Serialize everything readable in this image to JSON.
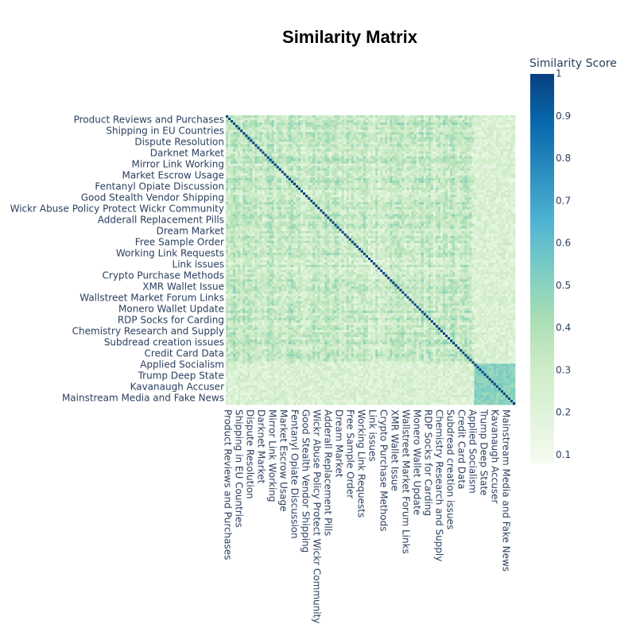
{
  "chart_data": {
    "type": "heatmap",
    "title": "Similarity Matrix",
    "n": 120,
    "labeled_rows": [
      {
        "index": 0,
        "label": "Product Reviews and Purchases"
      },
      {
        "index": 5,
        "label": "Shipping in EU Countries"
      },
      {
        "index": 10,
        "label": "Dispute Resolution"
      },
      {
        "index": 15,
        "label": "Darknet Market"
      },
      {
        "index": 20,
        "label": "Mirror Link Working"
      },
      {
        "index": 25,
        "label": "Market Escrow Usage"
      },
      {
        "index": 30,
        "label": "Fentanyl Opiate Discussion"
      },
      {
        "index": 35,
        "label": "Good Stealth Vendor Shipping"
      },
      {
        "index": 40,
        "label": "Wickr Abuse Policy Protect Wickr Community"
      },
      {
        "index": 45,
        "label": "Adderall Replacement Pills"
      },
      {
        "index": 50,
        "label": "Dream Market"
      },
      {
        "index": 55,
        "label": "Free Sample Order"
      },
      {
        "index": 60,
        "label": "Working Link Requests"
      },
      {
        "index": 65,
        "label": "Link issues"
      },
      {
        "index": 70,
        "label": "Crypto Purchase Methods"
      },
      {
        "index": 75,
        "label": "XMR Wallet Issue"
      },
      {
        "index": 80,
        "label": "Wallstreet Market Forum Links"
      },
      {
        "index": 85,
        "label": "Monero Wallet Update"
      },
      {
        "index": 90,
        "label": "RDP Socks for Carding"
      },
      {
        "index": 95,
        "label": "Chemistry Research and Supply"
      },
      {
        "index": 100,
        "label": "Subdread creation issues"
      },
      {
        "index": 105,
        "label": "Credit Card Data"
      },
      {
        "index": 110,
        "label": "Applied Socialism"
      },
      {
        "index": 115,
        "label": "Trump Deep State"
      },
      {
        "index": 120,
        "label": "Kavanaugh Accuser"
      },
      {
        "index": 125,
        "label": "Mainstream Media and Fake News"
      }
    ],
    "diagonal_value": 1.0,
    "off_diagonal_range": [
      0.15,
      0.65
    ],
    "political_cluster": {
      "from": 110,
      "to": 125,
      "typical_value": 0.5
    },
    "zmin": 0.08,
    "zmax": 1.0,
    "colorscale": [
      [
        0.0,
        "#f7fcf0"
      ],
      [
        0.125,
        "#e0f3db"
      ],
      [
        0.25,
        "#ccebc5"
      ],
      [
        0.375,
        "#a8ddb5"
      ],
      [
        0.5,
        "#7bccc4"
      ],
      [
        0.625,
        "#4eb3d3"
      ],
      [
        0.75,
        "#2b8cbe"
      ],
      [
        0.875,
        "#0868ac"
      ],
      [
        1.0,
        "#084081"
      ]
    ],
    "colorbar": {
      "title": "Similarity Score",
      "ticks": [
        {
          "value": 1,
          "label": "1"
        },
        {
          "value": 0.9,
          "label": "0.9"
        },
        {
          "value": 0.8,
          "label": "0.8"
        },
        {
          "value": 0.7,
          "label": "0.7"
        },
        {
          "value": 0.6,
          "label": "0.6"
        },
        {
          "value": 0.5,
          "label": "0.5"
        },
        {
          "value": 0.4,
          "label": "0.4"
        },
        {
          "value": 0.3,
          "label": "0.3"
        },
        {
          "value": 0.2,
          "label": "0.2"
        },
        {
          "value": 0.1,
          "label": "0.1"
        }
      ]
    }
  }
}
